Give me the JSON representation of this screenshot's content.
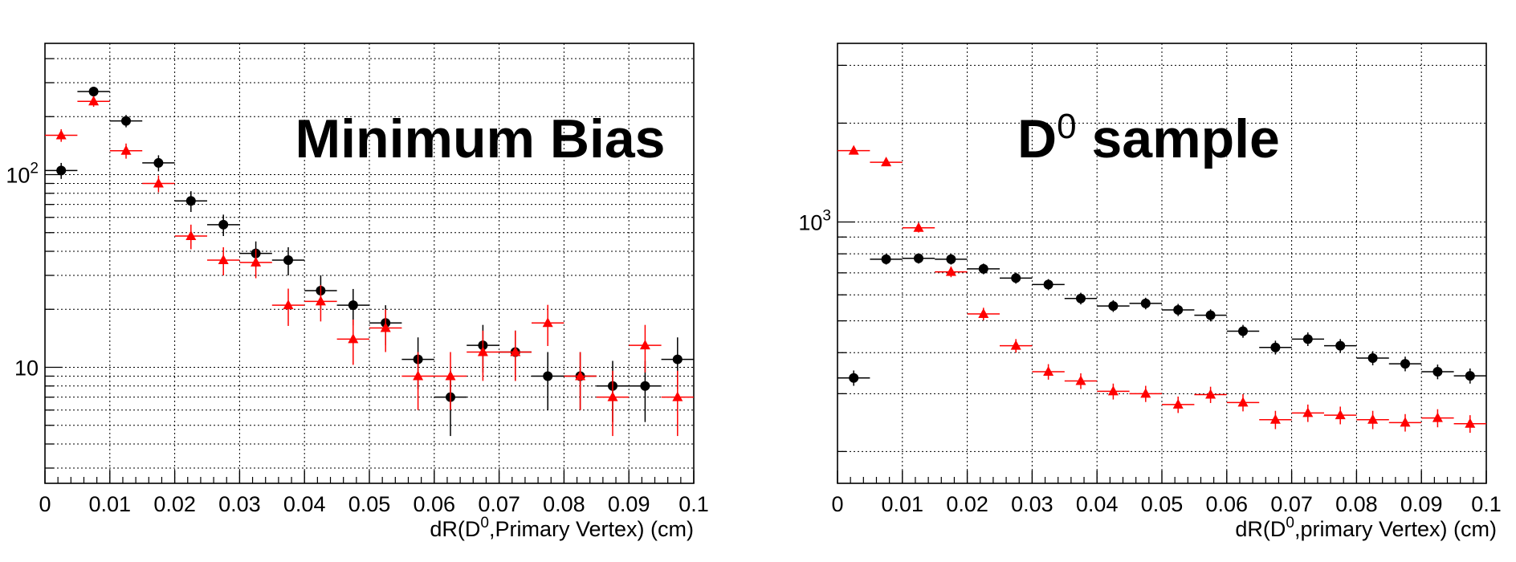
{
  "chart_data": [
    {
      "type": "scatter",
      "title": "Minimum Bias",
      "title_sup": "",
      "title_rest": "",
      "xlabel_main": "dR(D",
      "xlabel_sup": "0",
      "xlabel_rest": ",Primary Vertex) (cm)",
      "xlim": [
        0,
        0.1
      ],
      "ylim": [
        2.5,
        480
      ],
      "yscale": "log",
      "grid": true,
      "xticks": [
        "0",
        "0.01",
        "0.02",
        "0.03",
        "0.04",
        "0.05",
        "0.06",
        "0.07",
        "0.08",
        "0.09",
        "0.1"
      ],
      "yticks": [
        {
          "value": 10,
          "base": "10",
          "exp": ""
        },
        {
          "value": 100,
          "base": "10",
          "exp": "2"
        }
      ],
      "x": [
        0.0025,
        0.0075,
        0.0125,
        0.0175,
        0.0225,
        0.0275,
        0.0325,
        0.0375,
        0.0425,
        0.0475,
        0.0525,
        0.0575,
        0.0625,
        0.0675,
        0.0725,
        0.0775,
        0.0825,
        0.0875,
        0.0925,
        0.0975
      ],
      "bin_halfwidth": 0.0025,
      "series": [
        {
          "marker": "circle",
          "color": "#000000",
          "values": [
            105,
            270,
            190,
            115,
            73,
            55,
            39,
            36,
            25,
            21,
            17,
            11,
            7,
            13,
            12,
            9,
            9,
            8,
            8,
            11
          ],
          "errors": [
            10,
            16,
            14,
            11,
            9,
            7,
            6,
            6,
            5,
            4.5,
            4,
            3.3,
            2.6,
            3.6,
            3.5,
            3,
            3,
            2.8,
            2.8,
            3.3
          ]
        },
        {
          "marker": "triangle",
          "color": "#ff0000",
          "values": [
            160,
            240,
            133,
            90,
            48,
            36,
            35,
            21,
            22,
            14,
            16,
            9,
            9,
            12,
            12,
            17,
            9,
            7,
            13,
            7
          ],
          "errors": [
            12,
            15,
            12,
            9,
            7,
            6,
            6,
            4.6,
            4.7,
            3.7,
            4,
            3,
            3,
            3.5,
            3.5,
            4.1,
            3,
            2.6,
            3.6,
            2.6
          ]
        }
      ]
    },
    {
      "type": "scatter",
      "title": "D",
      "title_sup": "0",
      "title_rest": " sample",
      "xlabel_main": "dR(D",
      "xlabel_sup": "0",
      "xlabel_rest": ",primary Vertex) (cm)",
      "xlim": [
        0,
        0.1
      ],
      "ylim": [
        160,
        3500
      ],
      "yscale": "log",
      "grid": true,
      "xticks": [
        "0",
        "0.01",
        "0.02",
        "0.03",
        "0.04",
        "0.05",
        "0.06",
        "0.07",
        "0.08",
        "0.09",
        "0.1"
      ],
      "yticks": [
        {
          "value": 1000,
          "base": "10",
          "exp": "3"
        }
      ],
      "x": [
        0.0025,
        0.0075,
        0.0125,
        0.0175,
        0.0225,
        0.0275,
        0.0325,
        0.0375,
        0.0425,
        0.0475,
        0.0525,
        0.0575,
        0.0625,
        0.0675,
        0.0725,
        0.0775,
        0.0825,
        0.0875,
        0.0925,
        0.0975
      ],
      "bin_halfwidth": 0.0025,
      "series": [
        {
          "marker": "circle",
          "color": "#000000",
          "values": [
            335,
            770,
            775,
            770,
            720,
            675,
            645,
            585,
            555,
            565,
            540,
            520,
            465,
            415,
            440,
            420,
            385,
            370,
            350,
            340
          ],
          "errors": [
            18,
            28,
            28,
            28,
            27,
            26,
            25,
            24,
            23,
            23,
            23,
            22,
            21,
            20,
            21,
            20,
            19,
            19,
            18,
            18
          ]
        },
        {
          "marker": "triangle",
          "color": "#ff0000",
          "values": [
            1650,
            1520,
            960,
            705,
            525,
            420,
            350,
            328,
            305,
            300,
            278,
            298,
            282,
            250,
            262,
            258,
            250,
            245,
            253,
            243
          ],
          "errors": [
            40,
            39,
            31,
            26,
            23,
            20,
            19,
            18,
            17,
            17,
            16,
            17,
            17,
            16,
            16,
            16,
            16,
            15,
            16,
            15
          ]
        }
      ]
    }
  ]
}
